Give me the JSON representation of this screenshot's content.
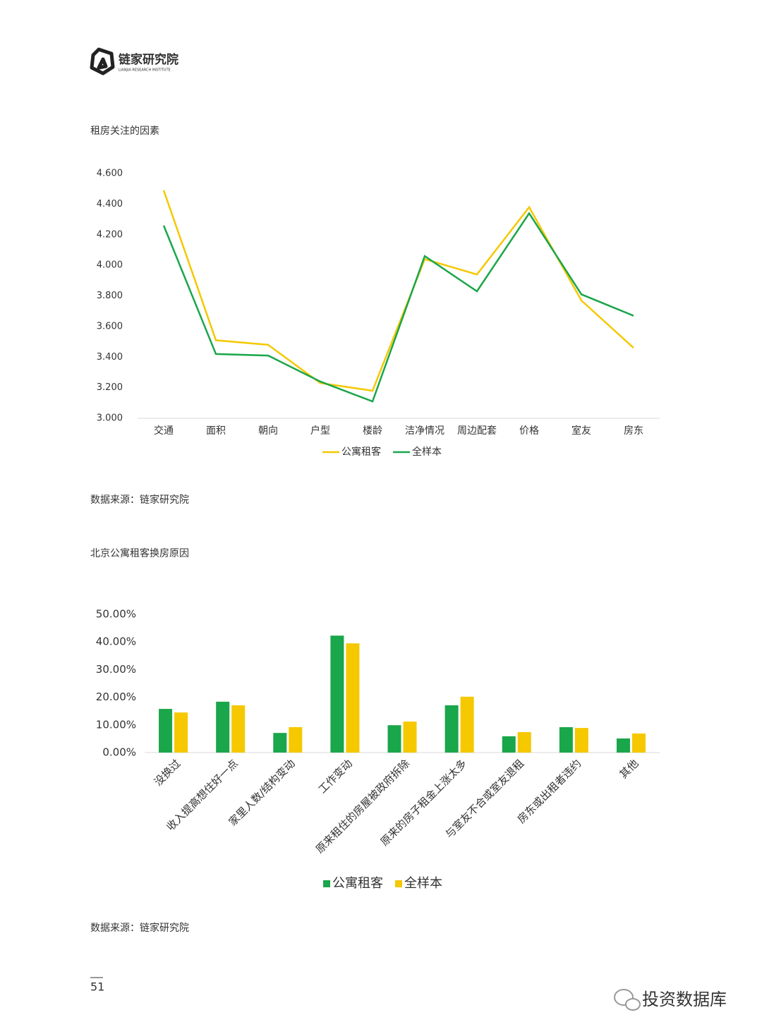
{
  "header": {
    "logo_text": "链家研究院",
    "logo_subtext": "LIANJIA RESEARCH INSTITUTE"
  },
  "chart_data": [
    {
      "type": "line",
      "title": "租房关注的因素",
      "categories": [
        "交通",
        "面积",
        "朝向",
        "户型",
        "楼龄",
        "洁净情况",
        "周边配套",
        "价格",
        "室友",
        "房东"
      ],
      "series": [
        {
          "name": "公寓租客",
          "color": "#f5c800",
          "values": [
            4.49,
            3.51,
            3.48,
            3.23,
            3.18,
            4.04,
            3.94,
            4.38,
            3.77,
            3.46
          ]
        },
        {
          "name": "全样本",
          "color": "#1aa64a",
          "values": [
            4.26,
            3.42,
            3.41,
            3.24,
            3.11,
            4.06,
            3.83,
            4.34,
            3.81,
            3.67
          ]
        }
      ],
      "ylim": [
        3.0,
        4.6
      ],
      "yticks": [
        {
          "value": 3.0,
          "label": "3.000"
        },
        {
          "value": 3.2,
          "label": "3.200"
        },
        {
          "value": 3.4,
          "label": "3.400"
        },
        {
          "value": 3.6,
          "label": "3.600"
        },
        {
          "value": 3.8,
          "label": "3.800"
        },
        {
          "value": 4.0,
          "label": "4.000"
        },
        {
          "value": 4.2,
          "label": "4.200"
        },
        {
          "value": 4.4,
          "label": "4.400"
        },
        {
          "value": 4.6,
          "label": "4.600"
        }
      ],
      "grid": false,
      "legend": "bottom",
      "source": "数据来源：链家研究院"
    },
    {
      "type": "bar",
      "title": "北京公寓租客换房原因",
      "categories": [
        "没换过",
        "收入提高想住好一点",
        "家里人数/结构变动",
        "工作变动",
        "原来租住的房屋被政府拆除",
        "原来的房子租金上涨太多",
        "与室友不合或室友退租",
        "房东或出租者违约",
        "其他"
      ],
      "series": [
        {
          "name": "公寓租客",
          "color": "#1aa64a",
          "values": [
            15.8,
            18.4,
            7.1,
            42.3,
            9.9,
            17.1,
            5.9,
            9.2,
            5.1
          ]
        },
        {
          "name": "全样本",
          "color": "#f5c800",
          "values": [
            14.5,
            17.1,
            9.2,
            39.5,
            11.2,
            20.2,
            7.4,
            8.9,
            6.9
          ]
        }
      ],
      "ylim": [
        0,
        50
      ],
      "yticks": [
        {
          "value": 0,
          "label": "0.00%"
        },
        {
          "value": 10,
          "label": "10.00%"
        },
        {
          "value": 20,
          "label": "20.00%"
        },
        {
          "value": 30,
          "label": "30.00%"
        },
        {
          "value": 40,
          "label": "40.00%"
        },
        {
          "value": 50,
          "label": "50.00%"
        }
      ],
      "grid": false,
      "legend": "bottom",
      "source": "数据来源：链家研究院"
    }
  ],
  "page_number": "51",
  "watermark": "投资数据库"
}
